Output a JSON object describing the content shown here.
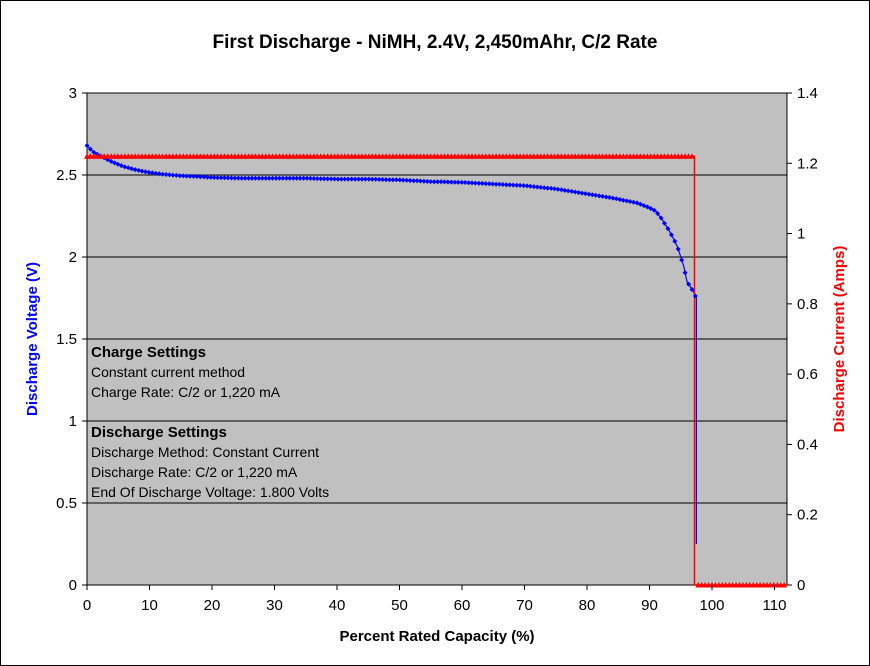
{
  "chart_data": {
    "type": "line",
    "title": "First Discharge - NiMH, 2.4V, 2,450mAhr, C/2 Rate",
    "xlabel": "Percent Rated Capacity (%)",
    "ylabel_left": "Discharge Voltage (V)",
    "ylabel_right": "Discharge Current (Amps)",
    "xlim": [
      0,
      112
    ],
    "ylim_left": [
      0,
      3
    ],
    "ylim_right": [
      0,
      1.4
    ],
    "x_ticks": [
      "0",
      "10",
      "20",
      "30",
      "40",
      "50",
      "60",
      "70",
      "80",
      "90",
      "100",
      "110"
    ],
    "y_left_ticks": [
      "0",
      "0.5",
      "1",
      "1.5",
      "2",
      "2.5",
      "3"
    ],
    "y_right_ticks": [
      "0",
      "0.2",
      "0.4",
      "0.6",
      "0.8",
      "1",
      "1.2",
      "1.4"
    ],
    "grid": "horizontal",
    "colors": {
      "voltage": "#0000ff",
      "current": "#ff0000",
      "plot_bg": "#c0c0c0"
    },
    "series": [
      {
        "axis": "left",
        "color": "#0000ff",
        "x": [
          0,
          0.5,
          1,
          2,
          3,
          4,
          5,
          6,
          8,
          10,
          12,
          15,
          18,
          20,
          25,
          30,
          35,
          40,
          45,
          50,
          55,
          60,
          65,
          70,
          75,
          80,
          84,
          86,
          88,
          89,
          90,
          91,
          92,
          93,
          94,
          94.5,
          95,
          95.5,
          96,
          96.5,
          97,
          97.5
        ],
        "y": [
          2.68,
          2.66,
          2.64,
          2.62,
          2.6,
          2.58,
          2.565,
          2.55,
          2.53,
          2.515,
          2.505,
          2.495,
          2.49,
          2.485,
          2.48,
          2.48,
          2.48,
          2.475,
          2.475,
          2.47,
          2.46,
          2.455,
          2.445,
          2.435,
          2.415,
          2.385,
          2.36,
          2.345,
          2.33,
          2.315,
          2.3,
          2.28,
          2.23,
          2.17,
          2.1,
          2.06,
          2.0,
          1.94,
          1.85,
          1.82,
          1.79,
          1.75
        ]
      },
      {
        "axis": "left",
        "color": "#0000ff",
        "x": [
          97.5,
          97.5
        ],
        "y": [
          1.75,
          0.25
        ]
      },
      {
        "axis": "right",
        "color": "#ff0000",
        "x": [
          0,
          10,
          20,
          30,
          40,
          50,
          60,
          70,
          80,
          90,
          97.2,
          97.2,
          97.8,
          100,
          105,
          110,
          112
        ],
        "y": [
          1.22,
          1.22,
          1.22,
          1.22,
          1.22,
          1.22,
          1.22,
          1.22,
          1.22,
          1.22,
          1.22,
          0.0,
          0.0,
          0.0,
          0.0,
          0.0,
          0.0
        ]
      }
    ],
    "annotations": {
      "charge_heading": "Charge Settings",
      "charge_line1": "Constant current method",
      "charge_line2": "Charge Rate: C/2 or 1,220 mA",
      "discharge_heading": "Discharge Settings",
      "discharge_line1": "Discharge Method: Constant Current",
      "discharge_line2": "Discharge Rate: C/2 or 1,220 mA",
      "discharge_line3": "End Of Discharge Voltage: 1.800 Volts"
    }
  }
}
